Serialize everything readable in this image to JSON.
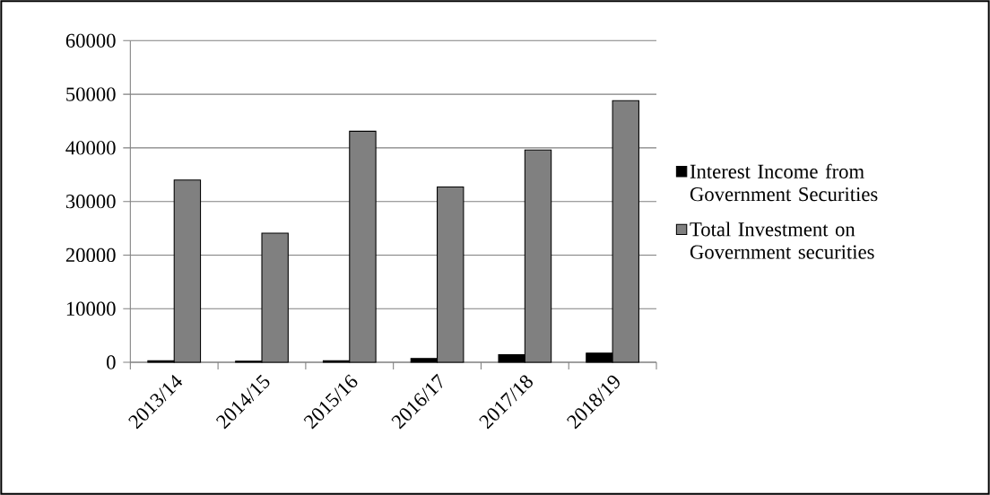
{
  "chart_data": {
    "type": "bar",
    "categories": [
      "2013/14",
      "2014/15",
      "2015/16",
      "2016/17",
      "2017/18",
      "2018/19"
    ],
    "series": [
      {
        "name": "Interest Income from Government Securities",
        "color": "#000000",
        "values": [
          300,
          200,
          300,
          700,
          1400,
          1700
        ]
      },
      {
        "name": "Total Investment on Government securities",
        "color": "#808080",
        "values": [
          34000,
          24100,
          43100,
          32700,
          39600,
          48800
        ]
      }
    ],
    "ylim": [
      0,
      60000
    ],
    "yticks": [
      0,
      10000,
      20000,
      30000,
      40000,
      50000,
      60000
    ],
    "grid": "y",
    "legend": "right"
  }
}
